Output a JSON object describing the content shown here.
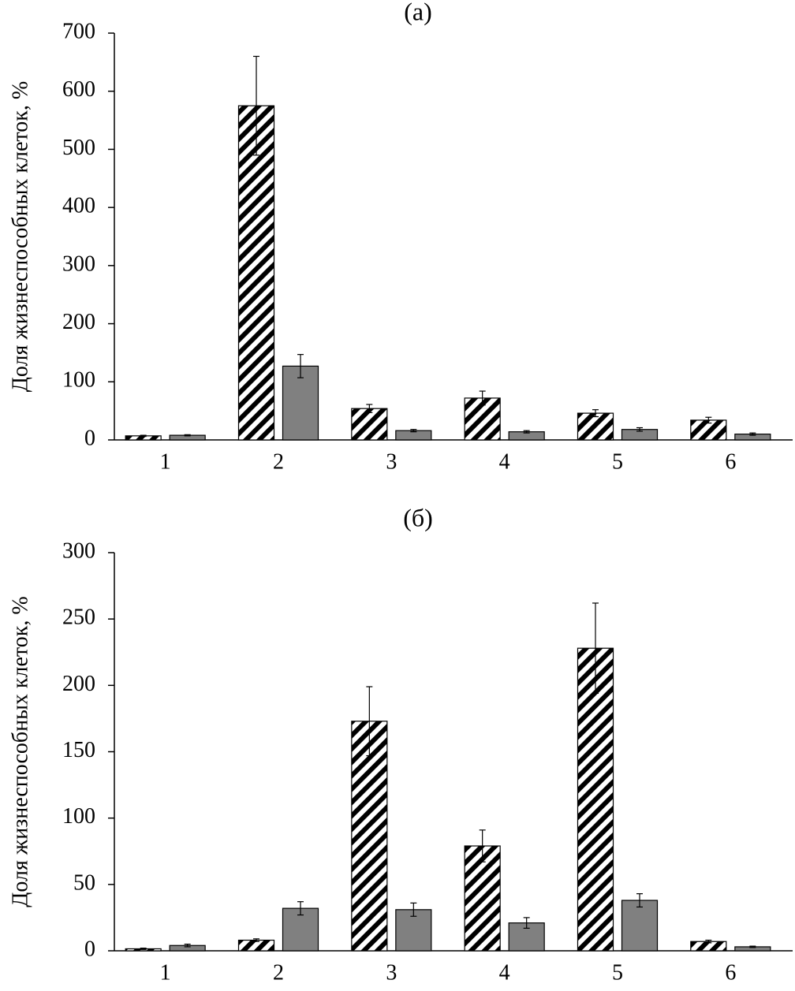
{
  "chart_data": [
    {
      "type": "bar",
      "title": "(а)",
      "y_label": "Доля жизнеспособных клеток, %",
      "categories": [
        "1",
        "2",
        "3",
        "4",
        "5",
        "6"
      ],
      "series": [
        {
          "color": "#000000",
          "hatch": true,
          "values": [
            7,
            575,
            54,
            72,
            46,
            34
          ],
          "errors": [
            1,
            85,
            7,
            12,
            6,
            5
          ]
        },
        {
          "color": "#808080",
          "hatch": false,
          "values": [
            8,
            127,
            16,
            14,
            18,
            10
          ],
          "errors": [
            1,
            20,
            2,
            2,
            3,
            2
          ]
        }
      ],
      "ylim": [
        0,
        700
      ],
      "yticks": [
        0,
        100,
        200,
        300,
        400,
        500,
        600,
        700
      ]
    },
    {
      "type": "bar",
      "title": "(б)",
      "y_label": "Доля жизнеспособных клеток, %",
      "categories": [
        "1",
        "2",
        "3",
        "4",
        "5",
        "6"
      ],
      "series": [
        {
          "color": "#000000",
          "hatch": true,
          "values": [
            1.5,
            8,
            173,
            79,
            228,
            7
          ],
          "errors": [
            0.5,
            1,
            26,
            12,
            34,
            1
          ]
        },
        {
          "color": "#808080",
          "hatch": false,
          "values": [
            4,
            32,
            31,
            21,
            38,
            3
          ],
          "errors": [
            1,
            5,
            5,
            4,
            5,
            0.5
          ]
        }
      ],
      "ylim": [
        0,
        300
      ],
      "yticks": [
        0,
        50,
        100,
        150,
        200,
        250,
        300
      ]
    }
  ]
}
